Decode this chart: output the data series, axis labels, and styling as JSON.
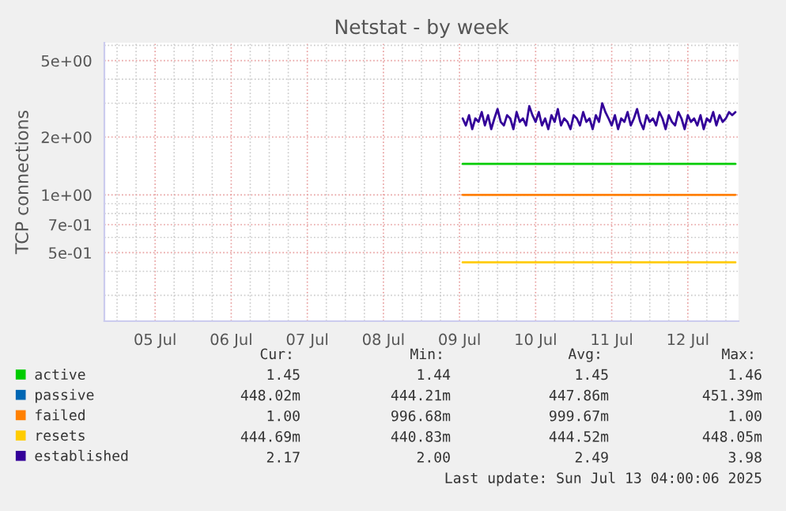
{
  "chart_data": {
    "type": "line",
    "title": "Netstat - by week",
    "ylabel": "TCP connections",
    "log": "y",
    "ylim": [
      0.22,
      6.2
    ],
    "yticks": [
      {
        "value": 0.5,
        "label": "5e-01"
      },
      {
        "value": 0.7,
        "label": "7e-01"
      },
      {
        "value": 1,
        "label": "1e+00"
      },
      {
        "value": 2,
        "label": "2e+00"
      },
      {
        "value": 5,
        "label": "5e+00"
      }
    ],
    "xlim": [
      "2025-07-04T20:00",
      "2025-07-13T04:00"
    ],
    "xticks": [
      {
        "value": "2025-07-05T12:00",
        "label": "05 Jul"
      },
      {
        "value": "2025-07-06T12:00",
        "label": "06 Jul"
      },
      {
        "value": "2025-07-07T12:00",
        "label": "07 Jul"
      },
      {
        "value": "2025-07-08T12:00",
        "label": "08 Jul"
      },
      {
        "value": "2025-07-09T12:00",
        "label": "09 Jul"
      },
      {
        "value": "2025-07-10T12:00",
        "label": "10 Jul"
      },
      {
        "value": "2025-07-11T12:00",
        "label": "11 Jul"
      },
      {
        "value": "2025-07-12T12:00",
        "label": "12 Jul"
      }
    ],
    "grid": true,
    "legend": "bottom left",
    "series": [
      {
        "name": "active",
        "color": "#00cc00",
        "x": [
          "2025-07-09T13:00",
          "2025-07-13T03:00"
        ],
        "values": [
          1.45,
          1.45
        ]
      },
      {
        "name": "passive",
        "color": "#0066b3"
      },
      {
        "name": "failed",
        "color": "#ff8000",
        "x": [
          "2025-07-09T13:00",
          "2025-07-13T03:00"
        ],
        "values": [
          1.0,
          1.0
        ]
      },
      {
        "name": "resets",
        "color": "#ffcc00",
        "x": [
          "2025-07-09T13:00",
          "2025-07-13T03:00"
        ],
        "values": [
          0.445,
          0.445
        ]
      },
      {
        "name": "established",
        "color": "#330099",
        "x": [
          "2025-07-09T13:00",
          "2025-07-09T14:00",
          "2025-07-09T15:00",
          "2025-07-09T16:00",
          "2025-07-09T17:00",
          "2025-07-09T18:00",
          "2025-07-09T19:00",
          "2025-07-09T20:00",
          "2025-07-09T21:00",
          "2025-07-09T22:00",
          "2025-07-09T23:00",
          "2025-07-10T00:00",
          "2025-07-10T01:00",
          "2025-07-10T02:00",
          "2025-07-10T03:00",
          "2025-07-10T04:00",
          "2025-07-10T05:00",
          "2025-07-10T06:00",
          "2025-07-10T07:00",
          "2025-07-10T08:00",
          "2025-07-10T09:00",
          "2025-07-10T10:00",
          "2025-07-10T11:00",
          "2025-07-10T12:00",
          "2025-07-10T13:00",
          "2025-07-10T14:00",
          "2025-07-10T15:00",
          "2025-07-10T16:00",
          "2025-07-10T17:00",
          "2025-07-10T18:00",
          "2025-07-10T19:00",
          "2025-07-10T20:00",
          "2025-07-10T21:00",
          "2025-07-10T22:00",
          "2025-07-10T23:00",
          "2025-07-11T00:00",
          "2025-07-11T01:00",
          "2025-07-11T02:00",
          "2025-07-11T03:00",
          "2025-07-11T04:00",
          "2025-07-11T05:00",
          "2025-07-11T06:00",
          "2025-07-11T07:00",
          "2025-07-11T08:00",
          "2025-07-11T09:00",
          "2025-07-11T10:00",
          "2025-07-11T11:00",
          "2025-07-11T12:00",
          "2025-07-11T13:00",
          "2025-07-11T14:00",
          "2025-07-11T15:00",
          "2025-07-11T16:00",
          "2025-07-11T17:00",
          "2025-07-11T18:00",
          "2025-07-11T19:00",
          "2025-07-11T20:00",
          "2025-07-11T21:00",
          "2025-07-11T22:00",
          "2025-07-11T23:00",
          "2025-07-12T00:00",
          "2025-07-12T01:00",
          "2025-07-12T02:00",
          "2025-07-12T03:00",
          "2025-07-12T04:00",
          "2025-07-12T05:00",
          "2025-07-12T06:00",
          "2025-07-12T07:00",
          "2025-07-12T08:00",
          "2025-07-12T09:00",
          "2025-07-12T10:00",
          "2025-07-12T11:00",
          "2025-07-12T12:00",
          "2025-07-12T13:00",
          "2025-07-12T14:00",
          "2025-07-12T15:00",
          "2025-07-12T16:00",
          "2025-07-12T17:00",
          "2025-07-12T18:00",
          "2025-07-12T19:00",
          "2025-07-12T20:00",
          "2025-07-12T21:00",
          "2025-07-12T22:00",
          "2025-07-12T23:00",
          "2025-07-13T00:00",
          "2025-07-13T01:00",
          "2025-07-13T02:00",
          "2025-07-13T03:00"
        ],
        "values": [
          2.5,
          2.3,
          2.6,
          2.2,
          2.5,
          2.4,
          2.7,
          2.3,
          2.6,
          2.2,
          2.5,
          2.8,
          2.4,
          2.3,
          2.6,
          2.5,
          2.2,
          2.7,
          2.4,
          2.5,
          2.3,
          2.9,
          2.6,
          2.4,
          2.7,
          2.3,
          2.5,
          2.2,
          2.6,
          2.4,
          2.8,
          2.3,
          2.5,
          2.4,
          2.2,
          2.6,
          2.5,
          2.3,
          2.7,
          2.4,
          2.5,
          2.2,
          2.6,
          2.4,
          3.0,
          2.7,
          2.5,
          2.3,
          2.6,
          2.2,
          2.5,
          2.4,
          2.7,
          2.3,
          2.5,
          2.8,
          2.4,
          2.2,
          2.6,
          2.4,
          2.5,
          2.3,
          2.7,
          2.5,
          2.2,
          2.6,
          2.4,
          2.3,
          2.7,
          2.5,
          2.2,
          2.6,
          2.4,
          2.5,
          2.3,
          2.6,
          2.2,
          2.5,
          2.4,
          2.7,
          2.3,
          2.6,
          2.4,
          2.5,
          2.7,
          2.6,
          2.7
        ]
      }
    ],
    "annotations": [
      "Cur:",
      "Min:",
      "Avg:",
      "Max:",
      "1.45",
      "1.44",
      "1.45",
      "1.46",
      "448.02m",
      "444.21m",
      "447.86m",
      "451.39m",
      "1.00",
      "996.68m",
      "999.67m",
      "1.00",
      "444.69m",
      "440.83m",
      "444.52m",
      "448.05m",
      "2.17",
      "2.00",
      "2.49",
      "3.98",
      "Last update: Sun Jul 13 04:00:06 2025"
    ]
  }
}
